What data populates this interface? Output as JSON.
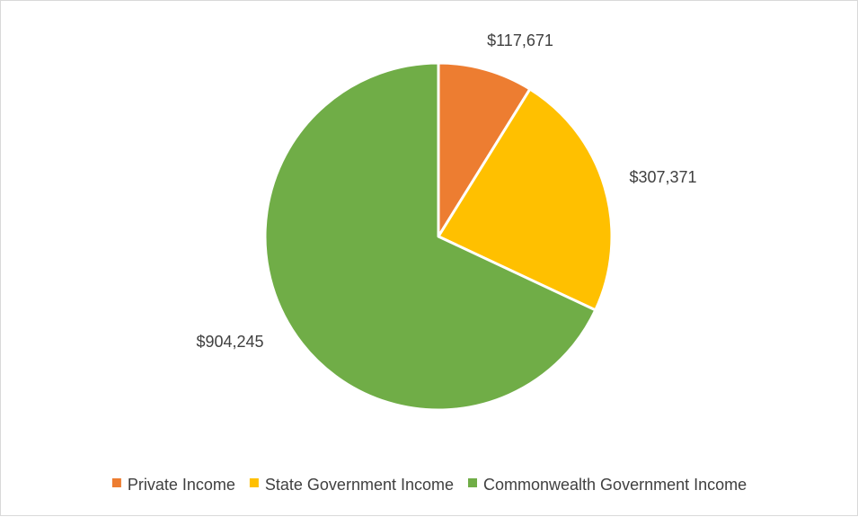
{
  "chart_data": {
    "type": "pie",
    "title": "",
    "slices": [
      {
        "label": "Private Income",
        "value": 117671,
        "display": "$117,671",
        "color": "#ED7D31"
      },
      {
        "label": "State Government Income",
        "value": 307371,
        "display": "$307,371",
        "color": "#FFC000"
      },
      {
        "label": "Commonwealth Government Income",
        "value": 904245,
        "display": "$904,245",
        "color": "#70AD47"
      }
    ],
    "start_angle_deg": 0,
    "direction": "clockwise",
    "legend_position": "bottom",
    "slice_border_color": "#FFFFFF"
  }
}
